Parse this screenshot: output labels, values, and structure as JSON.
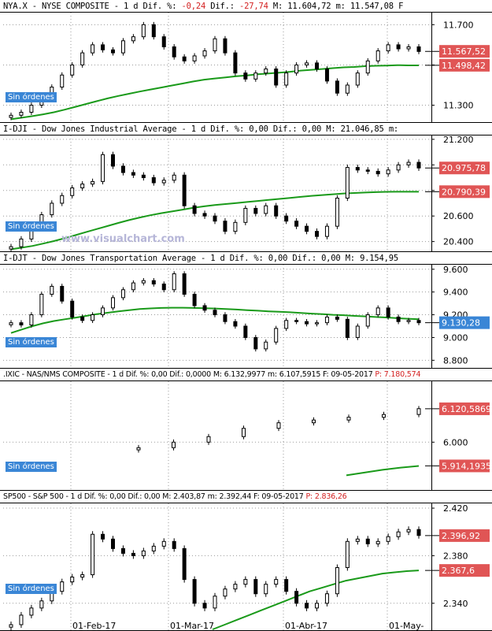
{
  "watermark": "www.visualchart.com",
  "sin_ordenes": "Sin órdenes",
  "x_dates": [
    "01-Feb-17",
    "01-Mar-17",
    "01-Abr-17",
    "01-May-"
  ],
  "colors": {
    "ma": "#1a9a1a",
    "tag_red": "#e05555",
    "tag_blue": "#3a86d6",
    "negative": "#d32020"
  },
  "chart_data": [
    {
      "type": "candlestick",
      "header": {
        "symbol": "NYA.X - NYSE COMPOSITE - 1 d",
        "dif_pct_label": "Dif. %:",
        "dif_pct": "-0,24",
        "dif_label": "Dif.:",
        "dif": "-27,74",
        "max_label": "M:",
        "max": "11.604,72",
        "min_label": "m:",
        "min": "11.547,08",
        "tail": "F"
      },
      "yticks": [
        "11.700",
        "11.500",
        "11.300"
      ],
      "ylim": [
        11220,
        11760
      ],
      "price_tags": [
        {
          "label": "11.567,52",
          "value": 11567.52,
          "color": "red"
        },
        {
          "label": "11.498,42",
          "value": 11498.42,
          "color": "red"
        }
      ],
      "ma": [
        11230,
        11238,
        11246,
        11255,
        11265,
        11278,
        11292,
        11306,
        11320,
        11334,
        11346,
        11357,
        11368,
        11378,
        11388,
        11398,
        11408,
        11418,
        11427,
        11433,
        11438,
        11444,
        11448,
        11454,
        11458,
        11462,
        11466,
        11472,
        11476,
        11480,
        11484,
        11488,
        11490,
        11494,
        11496,
        11497,
        11499,
        11498,
        11498
      ],
      "candles": [
        11250,
        11265,
        11300,
        11335,
        11390,
        11450,
        11500,
        11560,
        11600,
        11575,
        11560,
        11620,
        11640,
        11700,
        11640,
        11590,
        11540,
        11520,
        11545,
        11570,
        11630,
        11560,
        11460,
        11430,
        11460,
        11480,
        11400,
        11460,
        11500,
        11510,
        11480,
        11420,
        11360,
        11400,
        11460,
        11520,
        11570,
        11600,
        11580,
        11590,
        11567
      ]
    },
    {
      "type": "candlestick",
      "header": {
        "symbol": "I-DJI - Dow Jones Industrial Average - 1 d",
        "dif_pct_label": "Dif. %:",
        "dif_pct": "0,00",
        "dif_label": "Dif.:",
        "dif": "0,00",
        "max_label": "M:",
        "max": "21.046,85",
        "min_label": "m:",
        "min": "",
        "tail": ""
      },
      "yticks": [
        "21.200",
        "21.000",
        "20.800",
        "20.600",
        "20.400"
      ],
      "ylim": [
        20330,
        21230
      ],
      "price_tags": [
        {
          "label": "20.975,78",
          "value": 20975.78,
          "color": "red"
        },
        {
          "label": "20.790,39",
          "value": 20790.39,
          "color": "red"
        }
      ],
      "ma": [
        20340,
        20352,
        20366,
        20384,
        20404,
        20426,
        20450,
        20474,
        20498,
        20522,
        20546,
        20568,
        20588,
        20606,
        20622,
        20636,
        20650,
        20664,
        20676,
        20686,
        20694,
        20702,
        20710,
        20718,
        20726,
        20734,
        20742,
        20750,
        20758,
        20764,
        20770,
        20776,
        20780,
        20784,
        20787,
        20789,
        20790,
        20790,
        20790
      ],
      "candles": [
        20360,
        20420,
        20520,
        20610,
        20700,
        20760,
        20820,
        20850,
        20870,
        21080,
        20990,
        20940,
        20920,
        20900,
        20860,
        20880,
        20920,
        20680,
        20620,
        20600,
        20560,
        20480,
        20550,
        20660,
        20620,
        20680,
        20600,
        20560,
        20520,
        20480,
        20440,
        20520,
        20740,
        20980,
        20960,
        20950,
        20930,
        20960,
        21000,
        21020,
        20976
      ]
    },
    {
      "type": "candlestick",
      "header": {
        "symbol": "I-DJT - Dow Jones Transportation Average - 1 d",
        "dif_pct_label": "Dif. %:",
        "dif_pct": "0,00",
        "dif_label": "Dif.:",
        "dif": "0,00",
        "max_label": "M:",
        "max": "9.154,95",
        "min_label": "",
        "min": "",
        "tail": ""
      },
      "yticks": [
        "9.600",
        "9.400",
        "9.200",
        "9.000",
        "8.800"
      ],
      "ylim": [
        8740,
        9640
      ],
      "price_tags": [
        {
          "label": "9.130,28",
          "value": 9130.28,
          "color": "blue"
        }
      ],
      "ma": [
        9040,
        9070,
        9100,
        9125,
        9145,
        9160,
        9175,
        9190,
        9205,
        9218,
        9230,
        9240,
        9250,
        9256,
        9260,
        9262,
        9262,
        9260,
        9258,
        9255,
        9250,
        9246,
        9240,
        9236,
        9230,
        9226,
        9222,
        9216,
        9210,
        9205,
        9200,
        9196,
        9190,
        9186,
        9180,
        9176,
        9170,
        9165,
        9160
      ],
      "candles": [
        9130,
        9110,
        9200,
        9380,
        9450,
        9320,
        9180,
        9150,
        9200,
        9260,
        9350,
        9420,
        9480,
        9500,
        9470,
        9420,
        9560,
        9380,
        9280,
        9240,
        9200,
        9140,
        9100,
        9000,
        8900,
        8960,
        9080,
        9150,
        9140,
        9120,
        9130,
        9180,
        9160,
        9000,
        9100,
        9200,
        9260,
        9180,
        9140,
        9150,
        9130
      ]
    },
    {
      "type": "candlestick",
      "header": {
        "symbol": ".IXIC - NAS/NMS COMPOSITE - 1 d",
        "dif_pct_label": "Dif. %:",
        "dif_pct": "0,00",
        "dif_label": "Dif.:",
        "dif": "0,0000",
        "max_label": "M:",
        "max": "6.132,9977",
        "min_label": "m:",
        "min": "6.107,5915",
        "date_label": "F:",
        "date": "09-05-2017",
        "p_label": "P:",
        "p": "7.180,574"
      },
      "yticks": [
        "6.000"
      ],
      "ylim": [
        5830,
        6220
      ],
      "price_tags": [
        {
          "label": "6.120,5869",
          "value": 6120.5869,
          "color": "red"
        },
        {
          "label": "5.914,1935",
          "value": 5914.1935,
          "color": "red"
        }
      ],
      "ma": [
        5880,
        5890,
        5900,
        5908,
        5914
      ],
      "candles": [
        5980,
        6000,
        6020,
        6050,
        6070,
        6080,
        6090,
        6100,
        6121
      ]
    },
    {
      "type": "candlestick",
      "header": {
        "symbol": "SP500 - S&P 500 - 1 d",
        "dif_pct_label": "Dif. %:",
        "dif_pct": "0,00",
        "dif_label": "Dif.:",
        "dif": "0,00",
        "max_label": "M:",
        "max": "2.403,87",
        "min_label": "m:",
        "min": "2.392,44",
        "date_label": "F:",
        "date": "09-05-2017",
        "p_label": "P:",
        "p": "2.836,26"
      },
      "yticks": [
        "2.420",
        "2.380",
        "2.340"
      ],
      "ylim": [
        2318,
        2424
      ],
      "price_tags": [
        {
          "label": "2.396,92",
          "value": 2396.92,
          "color": "red"
        },
        {
          "label": "2.367,6",
          "value": 2367.6,
          "color": "red"
        }
      ],
      "ma": [
        2318,
        2322,
        2326,
        2330,
        2334,
        2338,
        2342,
        2346,
        2350,
        2353,
        2356,
        2359,
        2361,
        2363,
        2365,
        2366,
        2367,
        2367.6
      ],
      "candles": [
        2322,
        2330,
        2336,
        2342,
        2350,
        2358,
        2362,
        2364,
        2398,
        2394,
        2386,
        2382,
        2380,
        2384,
        2388,
        2392,
        2386,
        2360,
        2340,
        2336,
        2346,
        2352,
        2356,
        2360,
        2348,
        2356,
        2360,
        2350,
        2340,
        2336,
        2340,
        2348,
        2370,
        2392,
        2394,
        2390,
        2392,
        2396,
        2400,
        2402,
        2397
      ]
    }
  ]
}
